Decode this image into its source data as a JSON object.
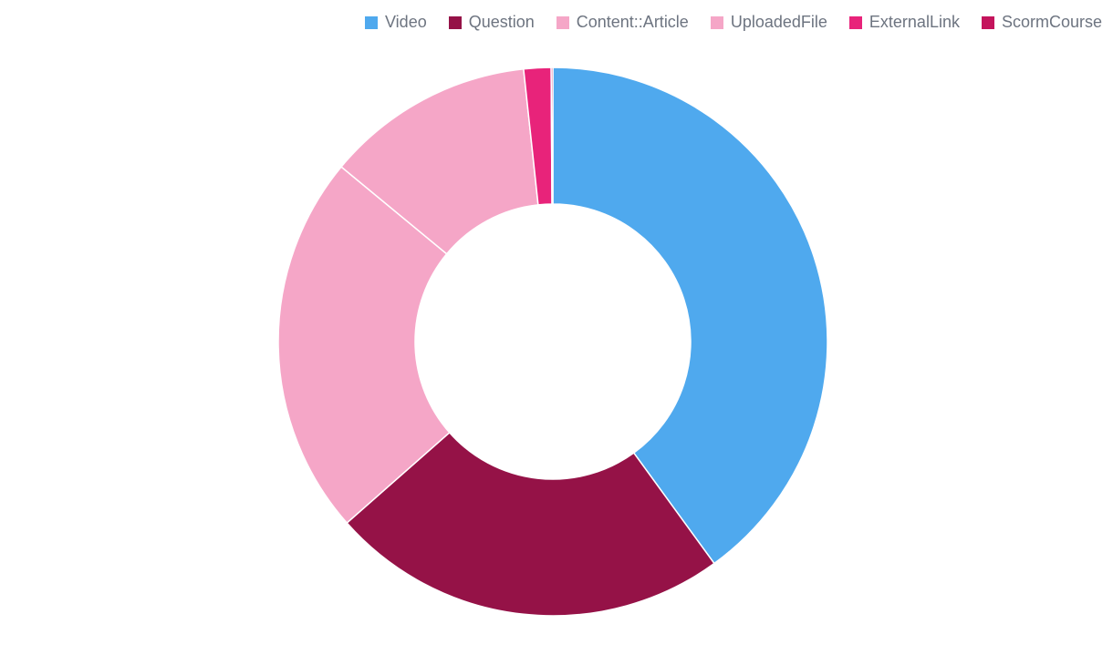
{
  "chart_data": {
    "type": "pie",
    "variant": "donut",
    "legend_position": "top-right",
    "slices": [
      {
        "label": "Video",
        "value": 40.0,
        "color": "#4fa9ee"
      },
      {
        "label": "Question",
        "value": 23.5,
        "color": "#951247"
      },
      {
        "label": "Content::Article",
        "value": 22.5,
        "color": "#f5a6c7"
      },
      {
        "label": "UploadedFile",
        "value": 12.3,
        "color": "#f5a6c7"
      },
      {
        "label": "ExternalLink",
        "value": 1.6,
        "color": "#e8237a"
      },
      {
        "label": "ScormCourse",
        "value": 0.1,
        "color": "#c4145c"
      }
    ]
  }
}
